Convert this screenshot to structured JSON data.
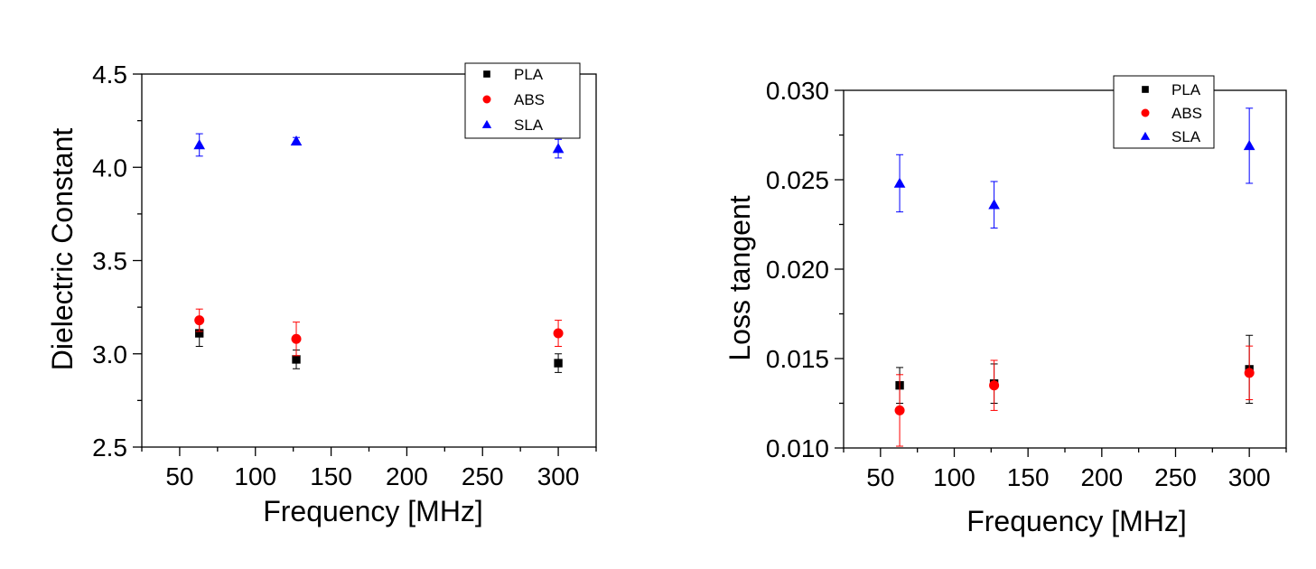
{
  "chart_data": [
    {
      "type": "scatter",
      "title": "",
      "xlabel": "Frequency [MHz]",
      "ylabel": "Dielectric Constant",
      "xlim": [
        25,
        325
      ],
      "ylim": [
        2.5,
        4.5
      ],
      "x_ticks": [
        50,
        100,
        150,
        200,
        250,
        300
      ],
      "y_ticks": [
        2.5,
        3.0,
        3.5,
        4.0,
        4.5
      ],
      "x_tick_labels": [
        "50",
        "100",
        "150",
        "200",
        "250",
        "300"
      ],
      "y_tick_labels": [
        "2.5",
        "3.0",
        "3.5",
        "4.0",
        "4.5"
      ],
      "grid": false,
      "legend_position": "top-right",
      "series": [
        {
          "name": "PLA",
          "marker": "square",
          "color": "#000000",
          "x": [
            63,
            127,
            300
          ],
          "y": [
            3.11,
            2.97,
            2.95
          ],
          "err": [
            0.07,
            0.05,
            0.05
          ]
        },
        {
          "name": "ABS",
          "marker": "circle",
          "color": "#ff0000",
          "x": [
            63,
            127,
            300
          ],
          "y": [
            3.18,
            3.08,
            3.11
          ],
          "err": [
            0.06,
            0.09,
            0.07
          ]
        },
        {
          "name": "SLA",
          "marker": "triangle",
          "color": "#0000ff",
          "x": [
            63,
            127,
            300
          ],
          "y": [
            4.12,
            4.14,
            4.1
          ],
          "err": [
            0.06,
            0.02,
            0.05
          ]
        }
      ]
    },
    {
      "type": "scatter",
      "title": "",
      "xlabel": "Frequency [MHz]",
      "ylabel": "Loss tangent",
      "xlim": [
        25,
        325
      ],
      "ylim": [
        0.01,
        0.03
      ],
      "x_ticks": [
        50,
        100,
        150,
        200,
        250,
        300
      ],
      "y_ticks": [
        0.01,
        0.015,
        0.02,
        0.025,
        0.03
      ],
      "x_tick_labels": [
        "50",
        "100",
        "150",
        "200",
        "250",
        "300"
      ],
      "y_tick_labels": [
        "0.010",
        "0.015",
        "0.020",
        "0.025",
        "0.030"
      ],
      "grid": false,
      "legend_position": "top-right",
      "series": [
        {
          "name": "PLA",
          "marker": "square",
          "color": "#000000",
          "x": [
            63,
            127,
            300
          ],
          "y": [
            0.0135,
            0.0136,
            0.0144
          ],
          "err": [
            0.001,
            0.0011,
            0.0019
          ]
        },
        {
          "name": "ABS",
          "marker": "circle",
          "color": "#ff0000",
          "x": [
            63,
            127,
            300
          ],
          "y": [
            0.0121,
            0.0135,
            0.0142
          ],
          "err": [
            0.002,
            0.0014,
            0.0015
          ]
        },
        {
          "name": "SLA",
          "marker": "triangle",
          "color": "#0000ff",
          "x": [
            63,
            127,
            300
          ],
          "y": [
            0.0248,
            0.0236,
            0.0269
          ],
          "err": [
            0.0016,
            0.0013,
            0.0021
          ]
        }
      ]
    }
  ]
}
